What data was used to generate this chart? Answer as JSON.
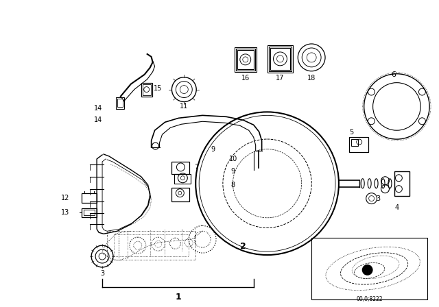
{
  "bg_color": "#ffffff",
  "line_color": "#000000",
  "fig_width": 6.4,
  "fig_height": 4.48,
  "dpi": 100,
  "code_text": "00,0;8222"
}
